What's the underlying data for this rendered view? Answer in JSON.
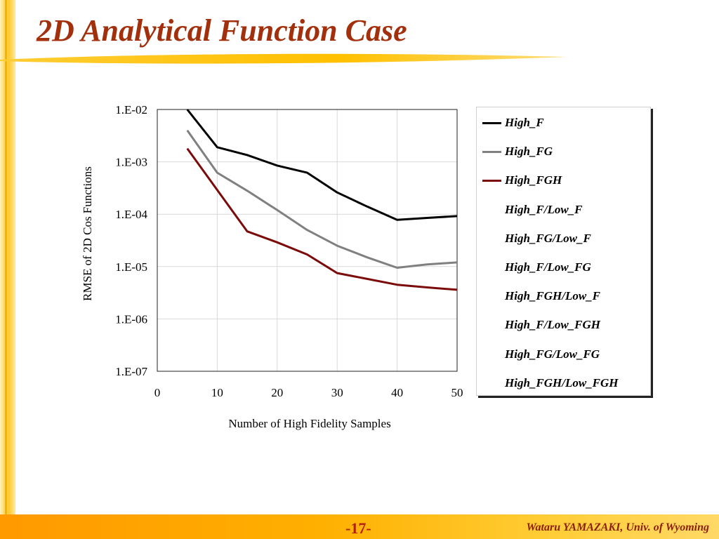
{
  "slide": {
    "title": "2D Analytical Function Case",
    "page_number": "-17-",
    "author": "Wataru YAMAZAKI, Univ. of Wyoming"
  },
  "colors": {
    "title": "#a2300d",
    "accent": "#ffcc33",
    "footer": "#ff9a00"
  },
  "chart_data": {
    "type": "line",
    "title": "",
    "xlabel": "Number of High Fidelity Samples",
    "ylabel": "RMSE of 2D Cos Functions",
    "xlim": [
      0,
      50
    ],
    "ylim": [
      1e-07,
      0.01
    ],
    "yscale": "log",
    "x_ticks": [
      "0",
      "10",
      "20",
      "30",
      "40",
      "50"
    ],
    "y_ticks": [
      "1.E-07",
      "1.E-06",
      "1.E-05",
      "1.E-04",
      "1.E-03",
      "1.E-02"
    ],
    "grid": "vertical",
    "legend_position": "right",
    "series": [
      {
        "name": "High_F",
        "color": "#000000",
        "x": [
          5,
          10,
          15,
          20,
          25,
          30,
          35,
          40,
          45,
          50
        ],
        "y": [
          0.01,
          0.0019,
          0.00135,
          0.00085,
          0.00062,
          0.00026,
          0.00014,
          7.8e-05,
          8.5e-05,
          9.2e-05
        ]
      },
      {
        "name": "High_FG",
        "color": "#808080",
        "x": [
          5,
          10,
          15,
          20,
          25,
          30,
          35,
          40,
          45,
          50
        ],
        "y": [
          0.004,
          0.00062,
          0.00028,
          0.00012,
          5e-05,
          2.5e-05,
          1.5e-05,
          9.5e-06,
          1.1e-05,
          1.2e-05
        ]
      },
      {
        "name": "High_FGH",
        "color": "#7b0a0a",
        "x": [
          5,
          10,
          15,
          20,
          25,
          30,
          35,
          40,
          45,
          50
        ],
        "y": [
          0.0018,
          0.00029,
          4.7e-05,
          2.9e-05,
          1.7e-05,
          7.5e-06,
          5.8e-06,
          4.5e-06,
          4e-06,
          3.6e-06
        ]
      }
    ],
    "legend_entries": [
      {
        "name": "High_F",
        "color": "#000000"
      },
      {
        "name": "High_FG",
        "color": "#808080"
      },
      {
        "name": "High_FGH",
        "color": "#7b0a0a"
      },
      {
        "name": "High_F/Low_F",
        "color": ""
      },
      {
        "name": "High_FG/Low_F",
        "color": ""
      },
      {
        "name": "High_F/Low_FG",
        "color": ""
      },
      {
        "name": "High_FGH/Low_F",
        "color": ""
      },
      {
        "name": "High_F/Low_FGH",
        "color": ""
      },
      {
        "name": "High_FG/Low_FG",
        "color": ""
      },
      {
        "name": "High_FGH/Low_FGH",
        "color": ""
      }
    ]
  }
}
